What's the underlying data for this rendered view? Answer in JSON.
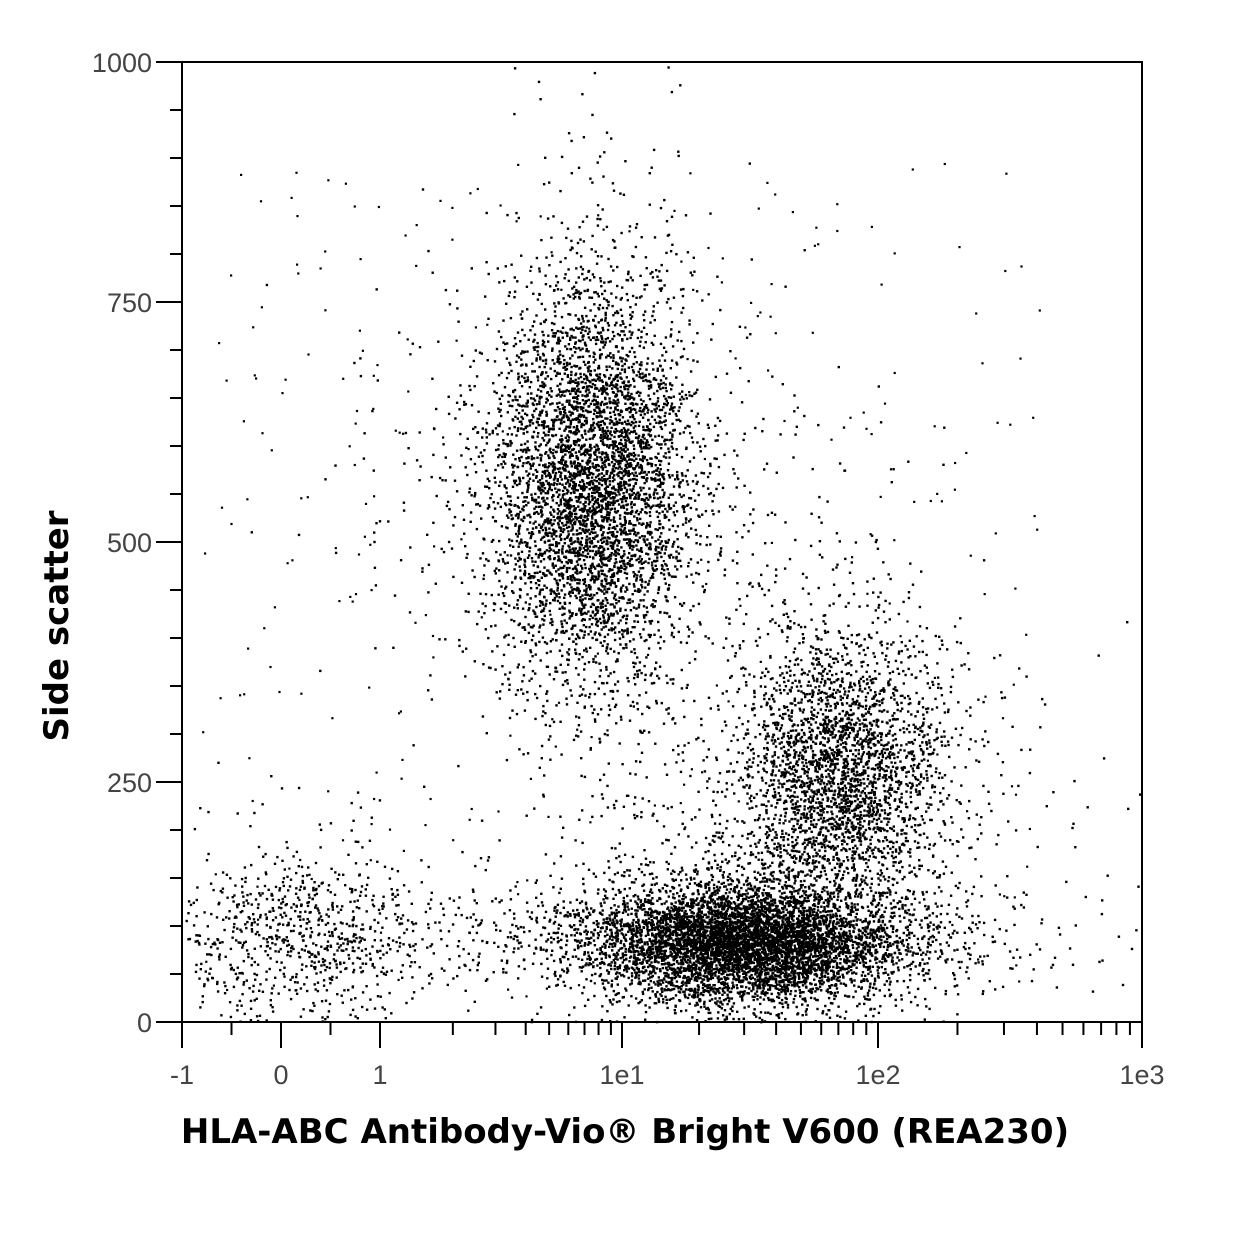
{
  "chart_data": {
    "type": "scatter",
    "title": "",
    "xlabel": "HLA-ABC Antibody-Vio® Bright V600 (REA230)",
    "ylabel": "Side scatter",
    "x_scale": "biexponential",
    "xlim": [
      -1,
      1000
    ],
    "ylim": [
      0,
      1000
    ],
    "x_tick_labels": [
      "-1",
      "0",
      "1",
      "1e1",
      "1e2",
      "1e3"
    ],
    "x_tick_values": [
      -1,
      0,
      1,
      10,
      100,
      1000
    ],
    "y_tick_labels": [
      "0",
      "250",
      "500",
      "750",
      "1000"
    ],
    "y_tick_values": [
      0,
      250,
      500,
      750,
      1000
    ],
    "grid": false,
    "legend": "none",
    "point_color": "#000000",
    "populations": [
      {
        "x_center": 7.5,
        "y_center": 560,
        "count": 5200
      },
      {
        "x_center": 28,
        "y_center": 85,
        "count": 7000
      },
      {
        "x_center": 70,
        "y_center": 260,
        "count": 3200
      },
      {
        "x_center": 0.2,
        "y_center": 90,
        "count": 900
      }
    ]
  }
}
